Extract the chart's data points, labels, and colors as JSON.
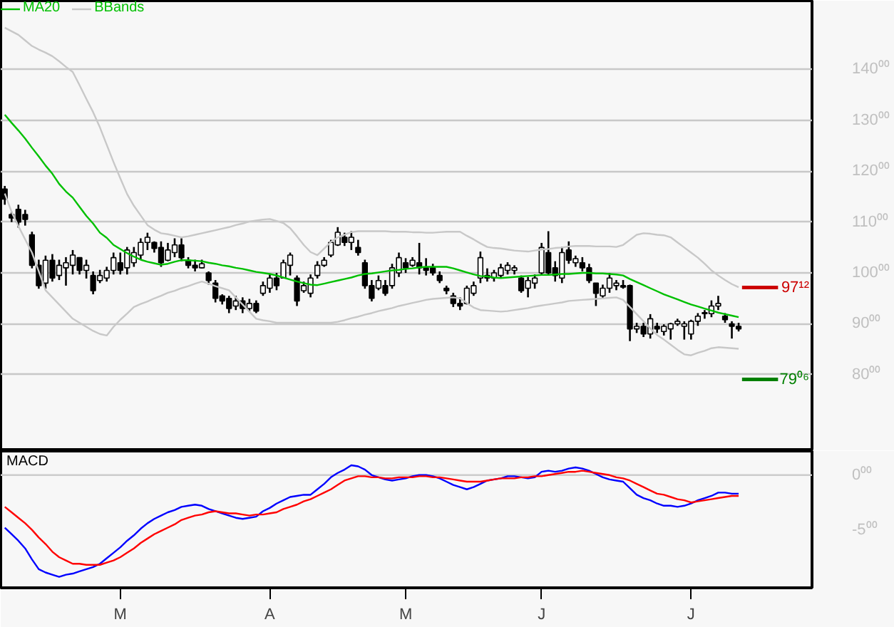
{
  "chart_data": [
    {
      "type": "candlestick",
      "ylim": [
        65,
        153.5
      ],
      "tick_labels": "y",
      "grid": "y",
      "legend": "top left",
      "categories": [
        null,
        null,
        null,
        null,
        null,
        null,
        null,
        null,
        null,
        null,
        null,
        null,
        null,
        null,
        null,
        null,
        null,
        null,
        null,
        null,
        null,
        null,
        null,
        null,
        null,
        null,
        null,
        null,
        null,
        null,
        null,
        null,
        null,
        null,
        null,
        null,
        null,
        null,
        null,
        null,
        null,
        null,
        null,
        null,
        null,
        null,
        null,
        null,
        null,
        null,
        null,
        null,
        null,
        null,
        null,
        null,
        null,
        null,
        null,
        null,
        null,
        null,
        null,
        null,
        null,
        null,
        null,
        null,
        null,
        null,
        null,
        null,
        null,
        null,
        null,
        null,
        null,
        null,
        null,
        null,
        null,
        null,
        null,
        null,
        null,
        null,
        null,
        null,
        null,
        null,
        null,
        null,
        null,
        null,
        null,
        null,
        null,
        null,
        null,
        null,
        null,
        null,
        null,
        null,
        null,
        null,
        null,
        null,
        null
      ],
      "yticks": [
        {
          "value": 80,
          "label": "80⁰⁰"
        },
        {
          "value": 90,
          "label": "90⁰⁰"
        },
        {
          "value": 100,
          "label": "100⁰⁰"
        },
        {
          "value": 110,
          "label": "110⁰⁰"
        },
        {
          "value": 120,
          "label": "120⁰⁰"
        },
        {
          "value": 130,
          "label": "130⁰⁰"
        },
        {
          "value": 140,
          "label": "140⁰⁰"
        }
      ],
      "ref_lines": [
        {
          "axis": "y",
          "value": 97.12,
          "label": "97¹²",
          "color": "#cc0000"
        },
        {
          "axis": "y",
          "value": 79.06,
          "label": "79⁰⁶",
          "color": "#008000"
        }
      ],
      "series": [
        {
          "type": "candlestick",
          "color": "#000000",
          "ohlc": [
            [
              116.5,
              117.1,
              113.4,
              114.5
            ],
            [
              111.5,
              112,
              110,
              110.8
            ],
            [
              112.5,
              113.4,
              108.9,
              110
            ],
            [
              111.5,
              112.4,
              109.3,
              110.5
            ],
            [
              107.5,
              108.1,
              100.9,
              101.5
            ],
            [
              101.5,
              102.6,
              96.9,
              97.5
            ],
            [
              98,
              103.4,
              96.9,
              102.5
            ],
            [
              102.5,
              103.7,
              98.3,
              99
            ],
            [
              99.5,
              102.6,
              98.6,
              101.5
            ],
            [
              101,
              103.1,
              97.5,
              102
            ],
            [
              101.5,
              104.5,
              99.7,
              103.5
            ],
            [
              103,
              103.1,
              99.7,
              100.5
            ],
            [
              100.5,
              102.6,
              98.9,
              101.5
            ],
            [
              99.5,
              100.3,
              95.8,
              96.5
            ],
            [
              98.5,
              100.6,
              98,
              99.5
            ],
            [
              99,
              101.2,
              98.3,
              100.5
            ],
            [
              100.5,
              104,
              99.7,
              103
            ],
            [
              102,
              104,
              99.7,
              100.5
            ],
            [
              101,
              105.1,
              99.7,
              104.5
            ],
            [
              102,
              105.1,
              101.2,
              104
            ],
            [
              103.5,
              106.8,
              102.6,
              106
            ],
            [
              106,
              107.9,
              104.5,
              107
            ],
            [
              106,
              106.2,
              104,
              104.8
            ],
            [
              105,
              106.2,
              101.2,
              102
            ],
            [
              102.5,
              105.9,
              102.3,
              104.5
            ],
            [
              104,
              106.8,
              103.1,
              105.5
            ],
            [
              105.5,
              106.8,
              102.3,
              103
            ],
            [
              102.5,
              103.1,
              100.9,
              101.5
            ],
            [
              101.5,
              102.6,
              100.3,
              101
            ],
            [
              101,
              102.6,
              100.9,
              101.8
            ],
            [
              100,
              100.3,
              97.7,
              98.5
            ],
            [
              98,
              98.6,
              94.2,
              95
            ],
            [
              95.5,
              95.8,
              93.8,
              94.5
            ],
            [
              95,
              95.5,
              92.1,
              93
            ],
            [
              93.5,
              95.5,
              92.7,
              94.5
            ],
            [
              94.5,
              95.2,
              92.1,
              93
            ],
            [
              93,
              94.9,
              92.4,
              94
            ],
            [
              94,
              94.6,
              92.1,
              92.5
            ],
            [
              96,
              98.3,
              95.5,
              97.5
            ],
            [
              97,
              99.7,
              96.1,
              99
            ],
            [
              99,
              100,
              96.6,
              97.5
            ],
            [
              99,
              102.6,
              98.9,
              102
            ],
            [
              101.5,
              104,
              99.5,
              103.5
            ],
            [
              99,
              99.5,
              93.5,
              94.5
            ],
            [
              96.5,
              98.3,
              96.1,
              97.5
            ],
            [
              96,
              99.7,
              95.2,
              99
            ],
            [
              99.5,
              102.3,
              98.9,
              101.5
            ],
            [
              101.5,
              103.1,
              101.2,
              102.5
            ],
            [
              103.5,
              106.5,
              103.1,
              106
            ],
            [
              105.5,
              109,
              105.3,
              108
            ],
            [
              107,
              107.9,
              105.3,
              106
            ],
            [
              106,
              108.2,
              104.5,
              107
            ],
            [
              105,
              106.5,
              103.4,
              104
            ],
            [
              102,
              102.6,
              96.9,
              97.5
            ],
            [
              97.5,
              98.6,
              94.4,
              95
            ],
            [
              97,
              99.5,
              96.6,
              98.5
            ],
            [
              97.5,
              98.6,
              95.5,
              96
            ],
            [
              97.5,
              101.8,
              96.9,
              101
            ],
            [
              100,
              104,
              99.2,
              103
            ],
            [
              102,
              102.9,
              100,
              101
            ],
            [
              101.5,
              103.1,
              101.2,
              102.5
            ],
            [
              102,
              105.9,
              99.7,
              101
            ],
            [
              101,
              102.9,
              99.5,
              100.5
            ],
            [
              101,
              101.8,
              99.5,
              100
            ],
            [
              99.5,
              100.3,
              98,
              98.5
            ],
            [
              97,
              97.5,
              95.8,
              96.5
            ],
            [
              95.5,
              96.1,
              93.3,
              94
            ],
            [
              94,
              95.2,
              92.7,
              93.5
            ],
            [
              94,
              97.5,
              93.8,
              97
            ],
            [
              96,
              98.3,
              95.5,
              97.5
            ],
            [
              99,
              104.2,
              98,
              103
            ],
            [
              99.5,
              100.9,
              98.3,
              99
            ],
            [
              99,
              100.6,
              98.3,
              100
            ],
            [
              99.5,
              101.8,
              98.9,
              101
            ],
            [
              100.5,
              102.1,
              99.7,
              101.5
            ],
            [
              100.5,
              101.5,
              99.7,
              101
            ],
            [
              99,
              99.5,
              96.1,
              96.5
            ],
            [
              97,
              99.2,
              95.2,
              98.5
            ],
            [
              98,
              99.7,
              96.9,
              99
            ],
            [
              100,
              105.9,
              99.5,
              105
            ],
            [
              104,
              108.2,
              99.5,
              100
            ],
            [
              101,
              102.3,
              98.3,
              99.5
            ],
            [
              99,
              105.1,
              98,
              104
            ],
            [
              104.5,
              106.2,
              101.8,
              102.5
            ],
            [
              102,
              103.4,
              101.2,
              102.8
            ],
            [
              102,
              103.1,
              100.3,
              101
            ],
            [
              101,
              101.8,
              98,
              98.5
            ],
            [
              98,
              98,
              93.5,
              96
            ],
            [
              95.5,
              97.7,
              94.9,
              97
            ],
            [
              97,
              100,
              96.1,
              99
            ],
            [
              97.5,
              98.6,
              96.6,
              98
            ],
            [
              97.5,
              98.6,
              96.9,
              97.2
            ],
            [
              97.5,
              97.7,
              86.6,
              89
            ],
            [
              89,
              90.2,
              88.2,
              89.5
            ],
            [
              89.5,
              90.2,
              87.4,
              88
            ],
            [
              88,
              91.9,
              87.1,
              91
            ],
            [
              89.5,
              90.2,
              88.2,
              89
            ],
            [
              88.5,
              89.9,
              87.7,
              89.5
            ],
            [
              89,
              90.2,
              86.9,
              90
            ],
            [
              90,
              91,
              89.6,
              90.5
            ],
            [
              89.5,
              90.5,
              86.9,
              90
            ],
            [
              88,
              90.8,
              86.9,
              90.5
            ],
            [
              90.5,
              92.1,
              89.6,
              91.5
            ],
            [
              92,
              92.7,
              91,
              92.2
            ],
            [
              92,
              94.6,
              91.3,
              93.5
            ],
            [
              93.5,
              95.5,
              92.7,
              94
            ],
            [
              91.5,
              92.1,
              90.2,
              90.8
            ],
            [
              90,
              90.5,
              87.1,
              89.5
            ],
            [
              89.5,
              90.2,
              88.5,
              89
            ]
          ]
        },
        {
          "type": "line",
          "name": "MA20",
          "color": "#00c000",
          "values": [
            131.1,
            129.5,
            128.0,
            126.4,
            124.6,
            122.9,
            121.1,
            119.5,
            117.5,
            116.0,
            114.8,
            113.0,
            111.2,
            109.7,
            107.9,
            106.9,
            105.5,
            104.7,
            103.9,
            103.2,
            102.6,
            102.2,
            101.9,
            101.6,
            101.8,
            102.2,
            102.5,
            102.5,
            102.4,
            102.3,
            102.0,
            101.8,
            101.5,
            101.3,
            101.0,
            100.8,
            100.5,
            100.2,
            100.0,
            99.8,
            99.5,
            99.1,
            98.7,
            98.3,
            98.0,
            97.7,
            97.6,
            97.9,
            98.2,
            98.5,
            98.8,
            99.1,
            99.5,
            99.8,
            99.9,
            100.1,
            100.3,
            100.5,
            100.6,
            100.8,
            100.9,
            101.1,
            101.2,
            101.2,
            101.2,
            101.2,
            100.9,
            100.5,
            100.1,
            99.7,
            99.4,
            99.3,
            99.1,
            99.0,
            99.1,
            99.2,
            99.3,
            99.4,
            99.5,
            99.6,
            99.6,
            99.7,
            99.8,
            99.8,
            99.9,
            100.0,
            100.0,
            99.9,
            99.9,
            99.8,
            99.7,
            99.5,
            98.8,
            98.2,
            97.6,
            97.0,
            96.4,
            95.8,
            95.3,
            94.8,
            94.3,
            93.8,
            93.4,
            93.0,
            92.6,
            92.2,
            91.9,
            91.6,
            91.3
          ]
        },
        {
          "type": "line",
          "name": "BBands",
          "color": "#c8c8c8",
          "values": [
            148.2,
            147.5,
            146.8,
            145.7,
            144.6,
            143.9,
            143.3,
            142.6,
            141.6,
            140.5,
            139.5,
            136.9,
            134.2,
            131.6,
            128.6,
            125.2,
            121.8,
            118.6,
            115.5,
            113.2,
            111.3,
            109.4,
            108.5,
            107.8,
            107.6,
            107.3,
            107.0,
            107.2,
            107.5,
            107.8,
            108.1,
            108.4,
            108.7,
            109.0,
            109.4,
            109.7,
            110.1,
            110.3,
            110.5,
            110.6,
            110.2,
            109.8,
            108.8,
            107.2,
            105.5,
            104.1,
            103.5,
            104.8,
            106.1,
            107.0,
            107.5,
            108.0,
            108.2,
            108.2,
            108.2,
            108.2,
            108.2,
            108.1,
            108.1,
            108.1,
            108.0,
            108.0,
            107.9,
            107.9,
            108.0,
            108.1,
            108.1,
            108.1,
            107.3,
            106.6,
            105.8,
            105.1,
            104.9,
            104.8,
            104.6,
            104.4,
            104.3,
            104.2,
            104.4,
            104.6,
            104.7,
            104.9,
            105.0,
            105.2,
            105.3,
            105.3,
            105.3,
            105.2,
            105.2,
            105.2,
            105.1,
            105.5,
            106.5,
            107.5,
            107.8,
            107.7,
            107.5,
            107.4,
            107.0,
            106.0,
            105.0,
            104.0,
            103.0,
            101.8,
            100.5,
            99.5,
            98.6,
            97.8,
            97.2
          ]
        },
        {
          "type": "line",
          "color": "#c8c8c8",
          "values": [
            115.6,
            112.0,
            109.2,
            106.6,
            104.0,
            100.3,
            96.6,
            95.2,
            93.8,
            92.4,
            91.0,
            90.2,
            89.4,
            88.6,
            88.0,
            87.7,
            89.4,
            90.8,
            92.0,
            93.3,
            93.9,
            94.4,
            95.0,
            95.5,
            96.1,
            96.5,
            97.0,
            97.4,
            97.9,
            98.3,
            97.9,
            97.4,
            97.0,
            96.6,
            95.2,
            93.8,
            92.4,
            91.0,
            90.7,
            90.5,
            90.2,
            90.2,
            90.2,
            90.2,
            90.2,
            90.2,
            90.2,
            90.2,
            90.2,
            90.4,
            90.7,
            91.1,
            91.4,
            91.8,
            92.1,
            92.5,
            92.8,
            93.1,
            93.5,
            93.8,
            94.1,
            94.4,
            94.7,
            94.9,
            95.0,
            95.1,
            95.2,
            95.0,
            94.1,
            93.2,
            92.7,
            92.6,
            92.5,
            92.4,
            92.5,
            92.7,
            92.9,
            93.1,
            93.4,
            93.6,
            93.8,
            94.0,
            94.2,
            94.5,
            94.6,
            94.7,
            94.8,
            94.9,
            95.0,
            95.1,
            95.2,
            94.7,
            93.3,
            91.9,
            90.5,
            89.1,
            87.8,
            86.9,
            85.9,
            84.9,
            84.0,
            83.8,
            84.3,
            84.7,
            85.2,
            85.4,
            85.3,
            85.2,
            85.1
          ]
        }
      ]
    },
    {
      "type": "line",
      "title": "MACD",
      "ylim": [
        -10.3,
        2.2
      ],
      "categories": [
        null,
        null,
        null,
        null,
        null,
        null,
        null,
        null,
        null,
        null,
        null,
        null,
        null,
        null,
        null,
        null,
        null,
        "M",
        null,
        null,
        null,
        null,
        null,
        null,
        null,
        null,
        null,
        null,
        null,
        null,
        null,
        null,
        null,
        null,
        null,
        null,
        null,
        null,
        null,
        "A",
        null,
        null,
        null,
        null,
        null,
        null,
        null,
        null,
        null,
        null,
        null,
        null,
        null,
        null,
        null,
        null,
        null,
        null,
        null,
        "M",
        null,
        null,
        null,
        null,
        null,
        null,
        null,
        null,
        null,
        null,
        null,
        null,
        null,
        null,
        null,
        null,
        null,
        null,
        null,
        "J",
        null,
        null,
        null,
        null,
        null,
        null,
        null,
        null,
        null,
        null,
        null,
        null,
        null,
        null,
        null,
        null,
        null,
        null,
        null,
        null,
        null,
        "J",
        null,
        null,
        null,
        null,
        null,
        null,
        null
      ],
      "yticks": [
        {
          "value": 0,
          "label": "0⁰⁰"
        },
        {
          "value": -5,
          "label": "-5⁰⁰"
        }
      ],
      "ref_lines": [
        {
          "axis": "y",
          "value": 0,
          "color": "#cccccc"
        }
      ],
      "series": [
        {
          "color": "#0000ff",
          "values": [
            -4.8,
            -5.4,
            -6.0,
            -6.7,
            -7.7,
            -8.6,
            -8.9,
            -9.1,
            -9.3,
            -9.1,
            -9.0,
            -8.8,
            -8.6,
            -8.4,
            -8.1,
            -7.6,
            -7.1,
            -6.6,
            -6.0,
            -5.5,
            -4.9,
            -4.4,
            -4.0,
            -3.7,
            -3.4,
            -3.2,
            -2.9,
            -2.8,
            -2.7,
            -2.8,
            -3.1,
            -3.3,
            -3.5,
            -3.7,
            -3.9,
            -4.0,
            -3.9,
            -3.8,
            -3.3,
            -3.0,
            -2.6,
            -2.3,
            -2.0,
            -1.9,
            -1.8,
            -1.8,
            -1.3,
            -0.8,
            -0.2,
            0.2,
            0.5,
            0.9,
            0.8,
            0.5,
            0.0,
            -0.2,
            -0.4,
            -0.5,
            -0.4,
            -0.3,
            -0.1,
            0.0,
            0.0,
            -0.1,
            -0.3,
            -0.6,
            -0.9,
            -1.1,
            -1.3,
            -1.1,
            -0.8,
            -0.5,
            -0.4,
            -0.3,
            -0.1,
            -0.1,
            -0.2,
            -0.3,
            -0.2,
            0.3,
            0.4,
            0.3,
            0.4,
            0.6,
            0.7,
            0.6,
            0.4,
            0.1,
            -0.2,
            -0.4,
            -0.5,
            -0.6,
            -1.2,
            -1.8,
            -2.1,
            -2.3,
            -2.6,
            -2.8,
            -2.8,
            -2.9,
            -2.8,
            -2.6,
            -2.3,
            -2.1,
            -1.9,
            -1.6,
            -1.6,
            -1.7,
            -1.7
          ]
        },
        {
          "color": "#ff0000",
          "values": [
            -2.9,
            -3.4,
            -3.9,
            -4.4,
            -5.0,
            -5.7,
            -6.3,
            -7.0,
            -7.5,
            -7.8,
            -8.1,
            -8.1,
            -8.2,
            -8.2,
            -8.2,
            -8.0,
            -7.8,
            -7.5,
            -7.1,
            -6.7,
            -6.2,
            -5.8,
            -5.4,
            -5.1,
            -4.8,
            -4.5,
            -4.1,
            -3.9,
            -3.7,
            -3.6,
            -3.4,
            -3.3,
            -3.4,
            -3.5,
            -3.5,
            -3.6,
            -3.7,
            -3.6,
            -3.6,
            -3.5,
            -3.4,
            -3.1,
            -2.9,
            -2.7,
            -2.4,
            -2.2,
            -1.9,
            -1.6,
            -1.3,
            -0.9,
            -0.5,
            -0.3,
            -0.1,
            -0.1,
            -0.2,
            -0.2,
            -0.3,
            -0.3,
            -0.2,
            -0.2,
            -0.2,
            -0.1,
            -0.1,
            -0.2,
            -0.2,
            -0.3,
            -0.4,
            -0.5,
            -0.6,
            -0.6,
            -0.6,
            -0.5,
            -0.4,
            -0.3,
            -0.3,
            -0.3,
            -0.2,
            -0.2,
            -0.1,
            -0.1,
            0.0,
            0.1,
            0.2,
            0.3,
            0.3,
            0.4,
            0.3,
            0.2,
            0.1,
            0.0,
            -0.2,
            -0.3,
            -0.5,
            -0.8,
            -1.1,
            -1.4,
            -1.7,
            -1.8,
            -2.0,
            -2.2,
            -2.3,
            -2.5,
            -2.4,
            -2.3,
            -2.2,
            -2.1,
            -2.0,
            -1.9,
            -1.9
          ]
        }
      ]
    }
  ]
}
